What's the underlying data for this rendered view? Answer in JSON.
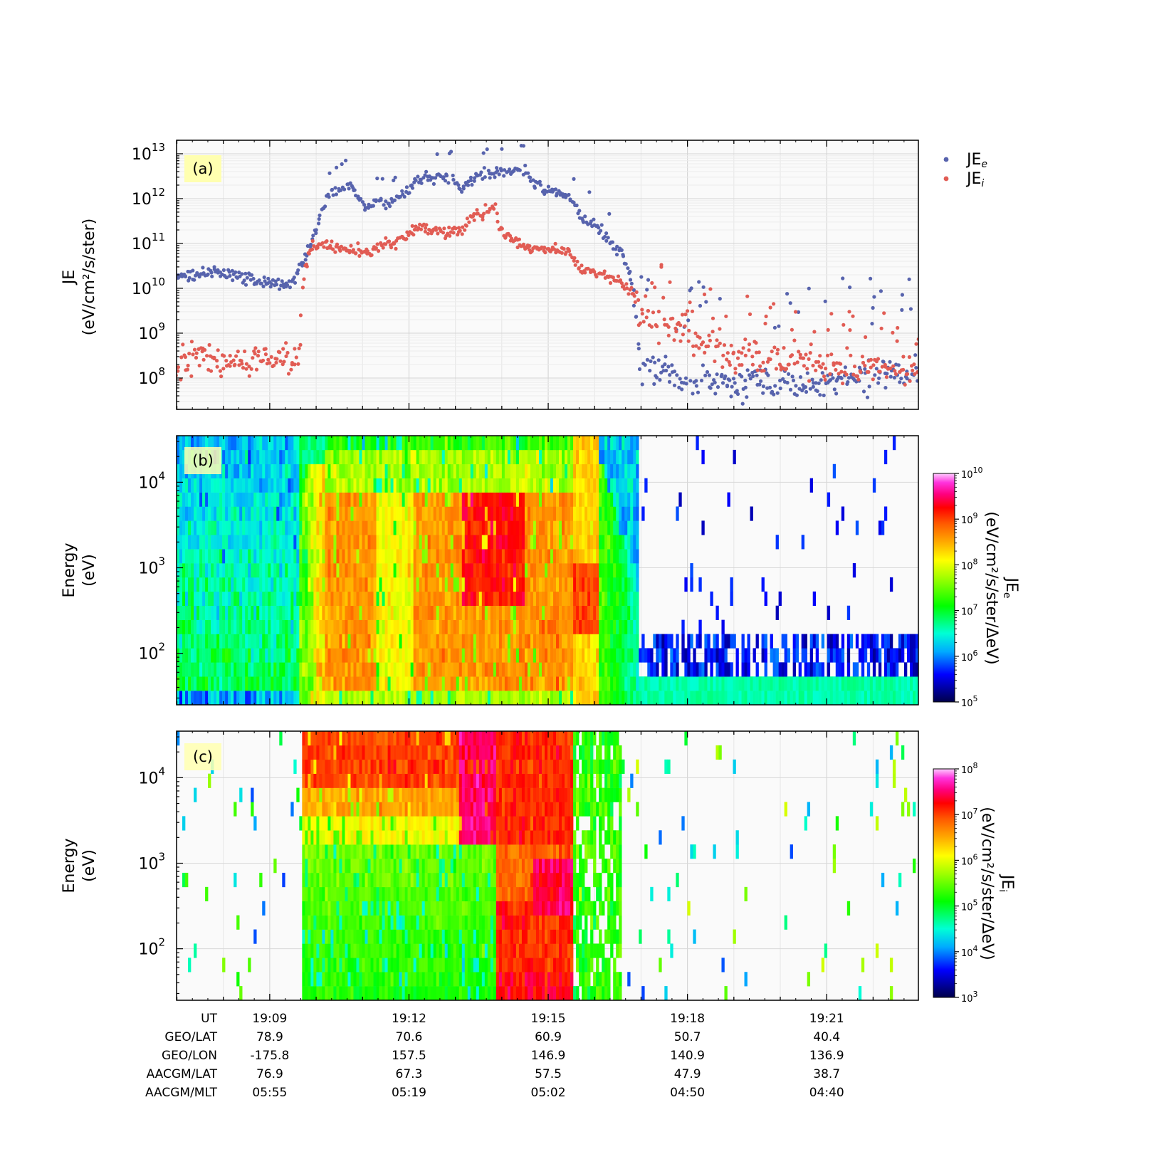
{
  "chart_data": [
    {
      "type": "scatter",
      "panel_label": "(a)",
      "ylabel": "JE",
      "ylabel_unit": "(eV/cm²/s/ster)",
      "yscale": "log",
      "ylim": [
        20000000,
        20000000000000
      ],
      "yticks": [
        {
          "exp": "8",
          "value": 100000000
        },
        {
          "exp": "9",
          "value": 1000000000
        },
        {
          "exp": "10",
          "value": 10000000000
        },
        {
          "exp": "11",
          "value": 100000000000
        },
        {
          "exp": "12",
          "value": 1000000000000
        },
        {
          "exp": "13",
          "value": 10000000000000
        }
      ],
      "xlim": [
        19.0,
        19.4
      ],
      "grid": true,
      "legend_position": "outside-right",
      "series": [
        {
          "name": "JE",
          "name_sub": "e",
          "color": "#5763ad",
          "profile": [
            [
              0.0,
              10.3
            ],
            [
              0.06,
              10.35
            ],
            [
              0.115,
              10.15
            ],
            [
              0.155,
              10.1
            ],
            [
              0.172,
              10.6
            ],
            [
              0.185,
              11.2
            ],
            [
              0.205,
              12.1
            ],
            [
              0.235,
              12.3
            ],
            [
              0.255,
              11.75
            ],
            [
              0.27,
              12.0
            ],
            [
              0.285,
              11.9
            ],
            [
              0.315,
              12.2
            ],
            [
              0.325,
              12.5
            ],
            [
              0.365,
              12.45
            ],
            [
              0.385,
              12.3
            ],
            [
              0.42,
              12.55
            ],
            [
              0.47,
              12.65
            ],
            [
              0.48,
              12.35
            ],
            [
              0.53,
              12.0
            ],
            [
              0.545,
              11.6
            ],
            [
              0.57,
              11.3
            ],
            [
              0.6,
              10.8
            ],
            [
              0.615,
              10.1
            ],
            [
              0.625,
              8.3
            ],
            [
              0.7,
              7.9
            ],
            [
              0.8,
              7.85
            ],
            [
              0.9,
              7.95
            ],
            [
              1.0,
              8.1
            ]
          ]
        },
        {
          "name": "JE",
          "name_sub": "i",
          "color": "#e15c54",
          "profile": [
            [
              0.0,
              8.4
            ],
            [
              0.165,
              8.4
            ],
            [
              0.172,
              10.5
            ],
            [
              0.185,
              11.0
            ],
            [
              0.23,
              10.9
            ],
            [
              0.26,
              10.8
            ],
            [
              0.275,
              10.95
            ],
            [
              0.305,
              11.1
            ],
            [
              0.325,
              11.35
            ],
            [
              0.36,
              11.25
            ],
            [
              0.385,
              11.3
            ],
            [
              0.4,
              11.6
            ],
            [
              0.43,
              11.8
            ],
            [
              0.435,
              11.25
            ],
            [
              0.48,
              10.9
            ],
            [
              0.53,
              10.8
            ],
            [
              0.545,
              10.4
            ],
            [
              0.58,
              10.3
            ],
            [
              0.61,
              10.0
            ],
            [
              0.625,
              9.5
            ],
            [
              0.7,
              8.8
            ],
            [
              0.8,
              8.4
            ],
            [
              0.9,
              8.2
            ],
            [
              1.0,
              8.2
            ]
          ]
        }
      ]
    },
    {
      "type": "heatmap",
      "panel_label": "(b)",
      "ylabel": "Energy",
      "ylabel_unit": "(eV)",
      "yscale": "log",
      "ylim": [
        25,
        35000
      ],
      "yticks": [
        {
          "exp": "2",
          "value": 100
        },
        {
          "exp": "3",
          "value": 1000
        },
        {
          "exp": "4",
          "value": 10000
        }
      ],
      "colorbar_label": "JE",
      "colorbar_label_sub": "e",
      "colorbar_unit": "(eV/cm²/s/ster/ΔeV)",
      "colorbar_range": [
        100000,
        10000000000
      ],
      "colorbar_ticks": [
        {
          "exp": "5"
        },
        {
          "exp": "6"
        },
        {
          "exp": "7"
        },
        {
          "exp": "8"
        },
        {
          "exp": "9"
        },
        {
          "exp": "10"
        }
      ]
    },
    {
      "type": "heatmap",
      "panel_label": "(c)",
      "ylabel": "Energy",
      "ylabel_unit": "(eV)",
      "yscale": "log",
      "ylim": [
        25,
        35000
      ],
      "yticks": [
        {
          "exp": "2",
          "value": 100
        },
        {
          "exp": "3",
          "value": 1000
        },
        {
          "exp": "4",
          "value": 10000
        }
      ],
      "colorbar_label": "JE",
      "colorbar_label_sub": "i",
      "colorbar_unit": "(eV/cm²/s/ster/ΔeV)",
      "colorbar_range": [
        1000,
        100000000
      ],
      "colorbar_ticks": [
        {
          "exp": "3"
        },
        {
          "exp": "4"
        },
        {
          "exp": "5"
        },
        {
          "exp": "6"
        },
        {
          "exp": "7"
        },
        {
          "exp": "8"
        }
      ]
    }
  ],
  "ephemeris": {
    "row_labels": [
      "UT",
      "GEO/LAT",
      "GEO/LON",
      "AACGM/LAT",
      "AACGM/MLT"
    ],
    "columns": [
      {
        "values": [
          "19:09",
          "78.9",
          "-175.8",
          "76.9",
          "05:55"
        ]
      },
      {
        "values": [
          "19:12",
          "70.6",
          "157.5",
          "67.3",
          "05:19"
        ]
      },
      {
        "values": [
          "19:15",
          "60.9",
          "146.9",
          "57.5",
          "05:02"
        ]
      },
      {
        "values": [
          "19:18",
          "50.7",
          "140.9",
          "47.9",
          "04:50"
        ]
      },
      {
        "values": [
          "19:21",
          "40.4",
          "136.9",
          "38.7",
          "04:40"
        ]
      }
    ]
  }
}
